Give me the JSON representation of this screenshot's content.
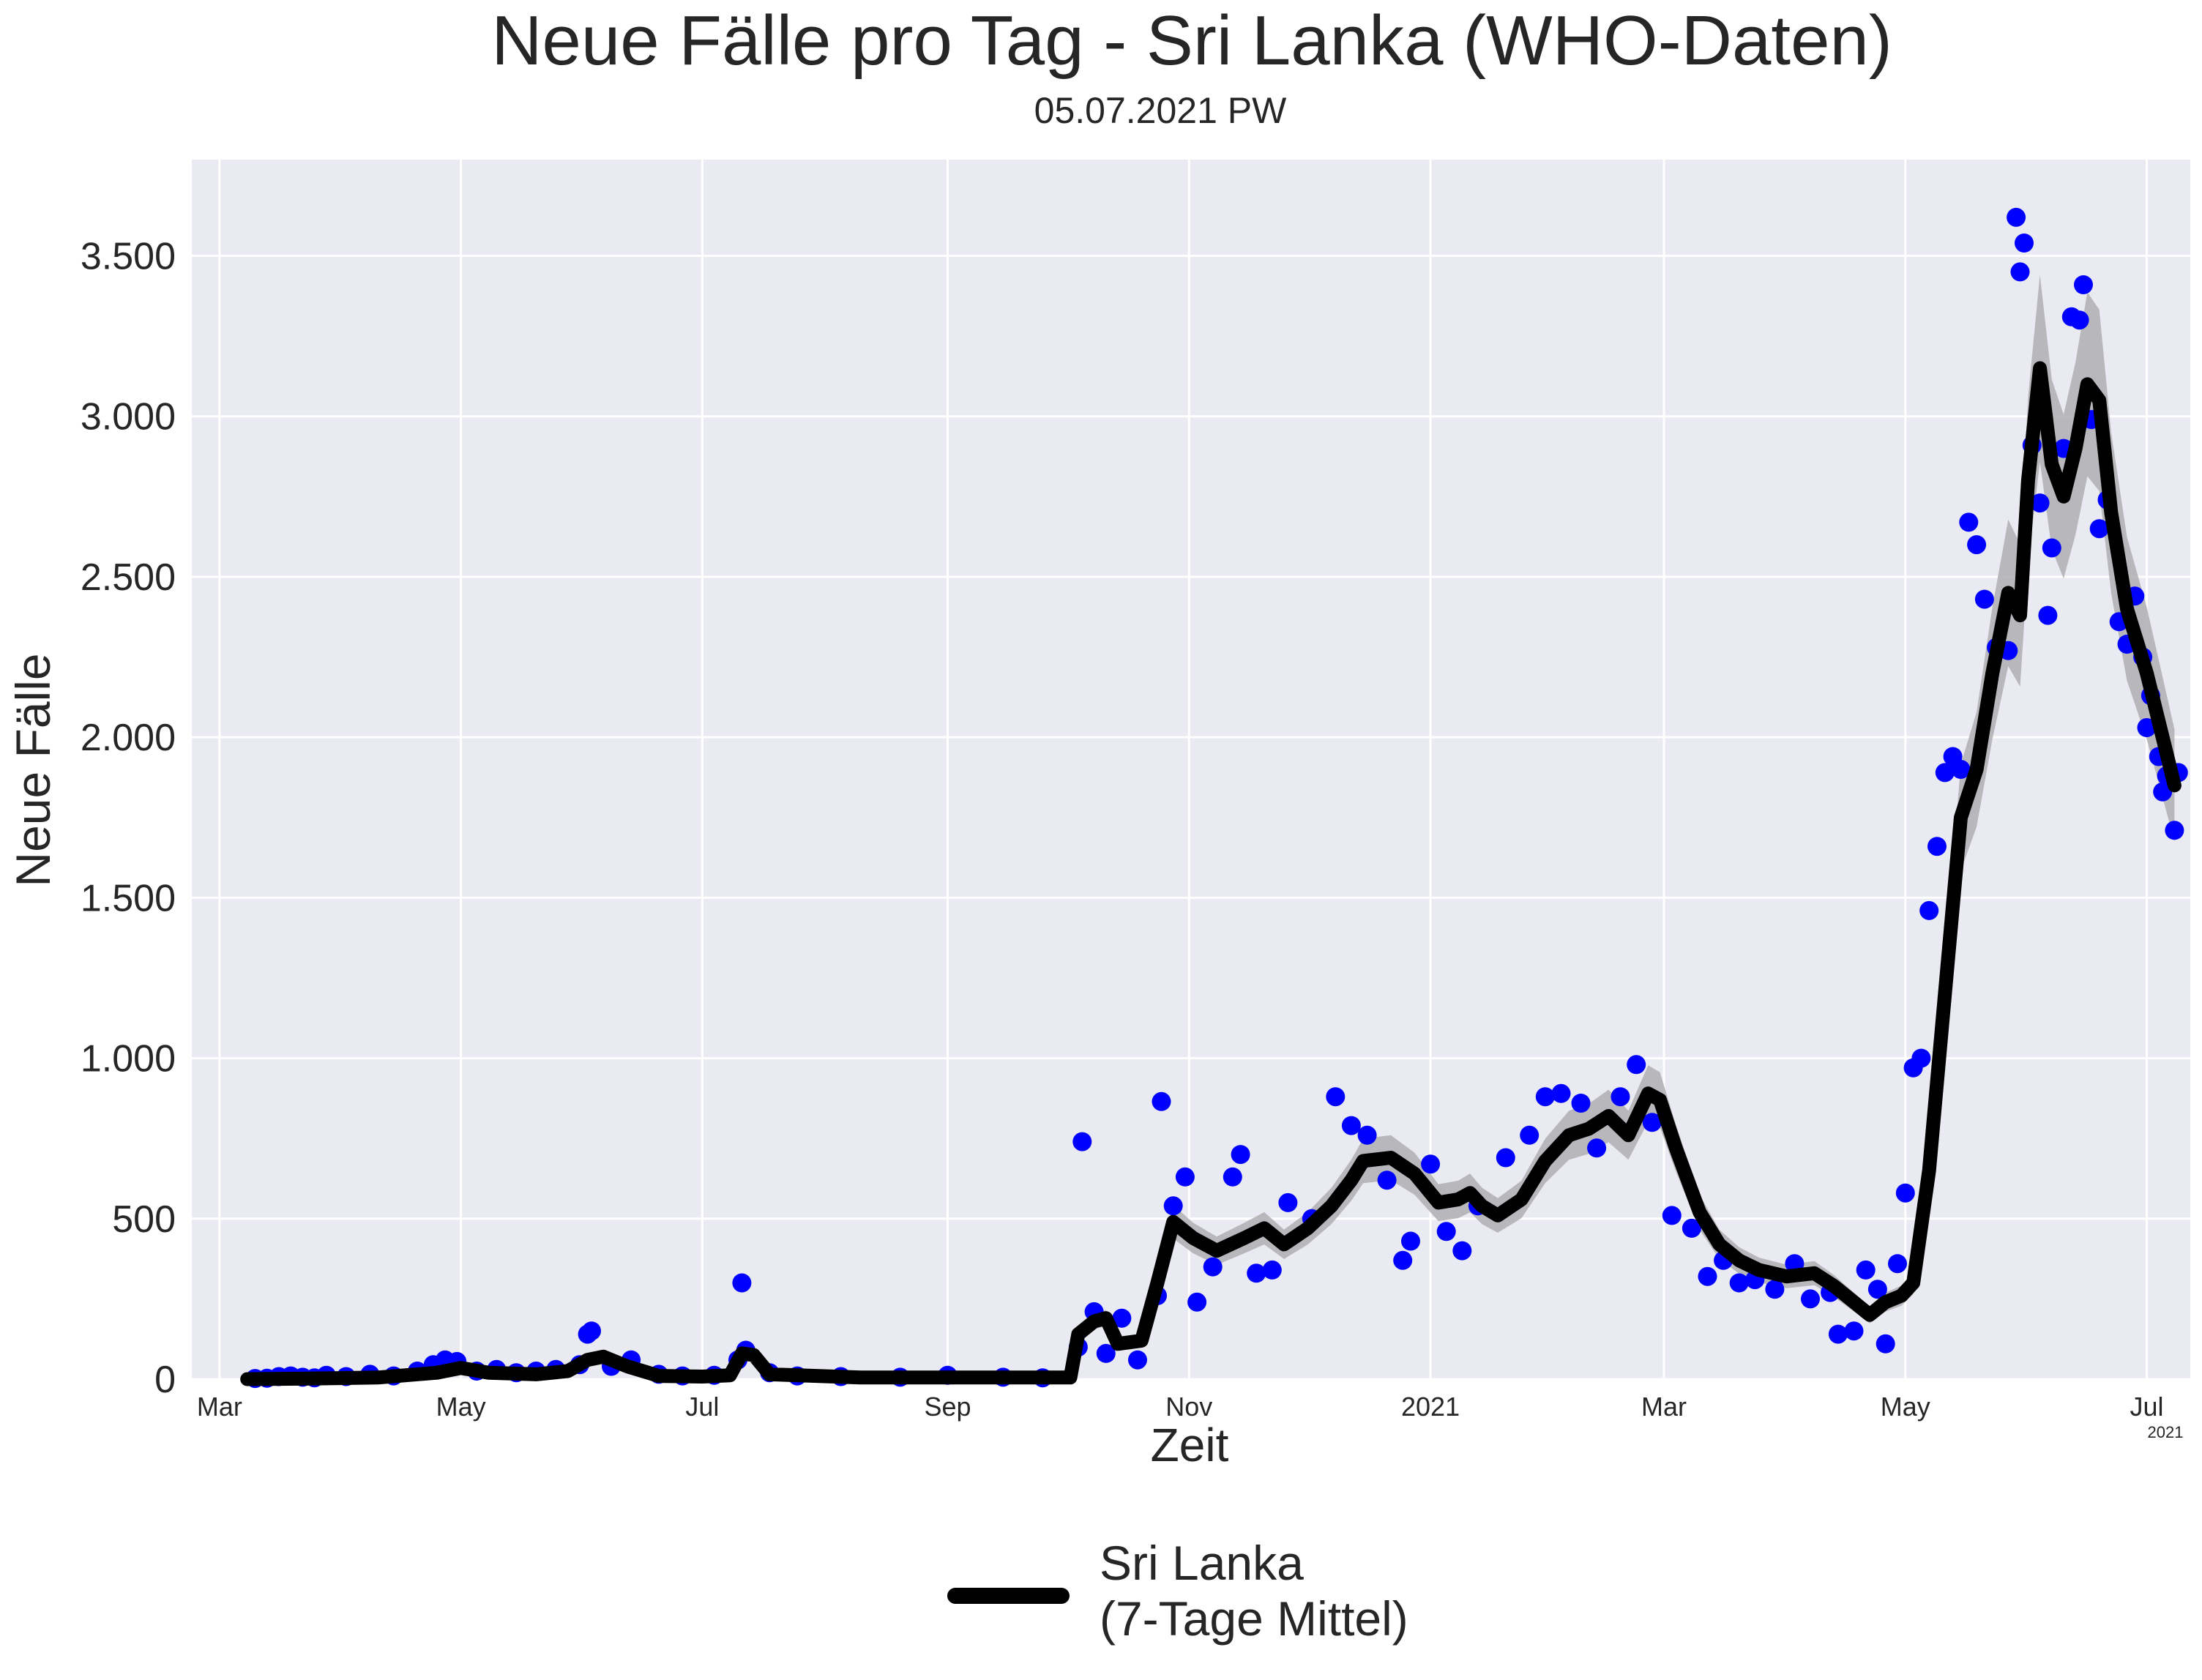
{
  "colors": {
    "background": "#ffffff",
    "plot_background": "#eaeaf2",
    "grid": "#ffffff",
    "points": "#0000ff",
    "line": "#000000",
    "band": "#b3b3b6",
    "text": "#262626"
  },
  "chart_data": {
    "type": "line",
    "title": "Neue Fälle pro Tag - Sri Lanka (WHO-Daten)",
    "subtitle": "05.07.2021 PW",
    "xlabel": "Zeit",
    "ylabel": "Neue Fälle",
    "xlim": [
      "2020-02-23",
      "2021-07-12"
    ],
    "ylim": [
      0,
      3800
    ],
    "y_ticks": [
      0,
      500,
      1000,
      1500,
      2000,
      2500,
      3000,
      3500
    ],
    "y_tick_labels": [
      "0",
      "500",
      "1.000",
      "1.500",
      "2.000",
      "2.500",
      "3.000",
      "3.500"
    ],
    "x_ticks": [
      {
        "date": "2020-03-01",
        "label": "Mar"
      },
      {
        "date": "2020-05-01",
        "label": "May"
      },
      {
        "date": "2020-07-01",
        "label": "Jul"
      },
      {
        "date": "2020-09-01",
        "label": "Sep"
      },
      {
        "date": "2020-11-01",
        "label": "Nov"
      },
      {
        "date": "2021-01-01",
        "label": "2021"
      },
      {
        "date": "2021-03-01",
        "label": "Mar"
      },
      {
        "date": "2021-05-01",
        "label": "May"
      },
      {
        "date": "2021-07-01",
        "label": "Jul"
      }
    ],
    "x_offset_label": "2021",
    "grid": true,
    "legend_position": "bottom-center",
    "series": [
      {
        "name": "Sri Lanka\n(7-Tage Mittel)",
        "kind": "line",
        "points": [
          [
            "2020-03-08",
            0
          ],
          [
            "2020-03-25",
            2
          ],
          [
            "2020-04-10",
            5
          ],
          [
            "2020-04-25",
            20
          ],
          [
            "2020-05-01",
            35
          ],
          [
            "2020-05-08",
            20
          ],
          [
            "2020-05-20",
            15
          ],
          [
            "2020-05-28",
            25
          ],
          [
            "2020-06-02",
            60
          ],
          [
            "2020-06-06",
            70
          ],
          [
            "2020-06-12",
            40
          ],
          [
            "2020-06-20",
            10
          ],
          [
            "2020-07-01",
            8
          ],
          [
            "2020-07-08",
            12
          ],
          [
            "2020-07-11",
            80
          ],
          [
            "2020-07-14",
            75
          ],
          [
            "2020-07-18",
            15
          ],
          [
            "2020-08-10",
            5
          ],
          [
            "2020-09-15",
            5
          ],
          [
            "2020-10-02",
            5
          ],
          [
            "2020-10-04",
            140
          ],
          [
            "2020-10-08",
            180
          ],
          [
            "2020-10-11",
            190
          ],
          [
            "2020-10-14",
            110
          ],
          [
            "2020-10-20",
            120
          ],
          [
            "2020-10-24",
            300
          ],
          [
            "2020-10-28",
            490
          ],
          [
            "2020-11-02",
            440
          ],
          [
            "2020-11-08",
            400
          ],
          [
            "2020-11-15",
            440
          ],
          [
            "2020-11-20",
            470
          ],
          [
            "2020-11-25",
            420
          ],
          [
            "2020-12-01",
            470
          ],
          [
            "2020-12-07",
            540
          ],
          [
            "2020-12-12",
            620
          ],
          [
            "2020-12-15",
            680
          ],
          [
            "2020-12-22",
            690
          ],
          [
            "2020-12-28",
            640
          ],
          [
            "2021-01-03",
            550
          ],
          [
            "2021-01-08",
            560
          ],
          [
            "2021-01-11",
            580
          ],
          [
            "2021-01-14",
            540
          ],
          [
            "2021-01-18",
            510
          ],
          [
            "2021-01-24",
            560
          ],
          [
            "2021-01-30",
            680
          ],
          [
            "2021-02-05",
            760
          ],
          [
            "2021-02-10",
            780
          ],
          [
            "2021-02-15",
            820
          ],
          [
            "2021-02-20",
            760
          ],
          [
            "2021-02-25",
            890
          ],
          [
            "2021-02-28",
            870
          ],
          [
            "2021-03-04",
            720
          ],
          [
            "2021-03-10",
            520
          ],
          [
            "2021-03-15",
            420
          ],
          [
            "2021-03-20",
            370
          ],
          [
            "2021-03-25",
            340
          ],
          [
            "2021-04-01",
            320
          ],
          [
            "2021-04-08",
            330
          ],
          [
            "2021-04-13",
            290
          ],
          [
            "2021-04-18",
            240
          ],
          [
            "2021-04-22",
            200
          ],
          [
            "2021-04-26",
            240
          ],
          [
            "2021-04-30",
            260
          ],
          [
            "2021-05-03",
            300
          ],
          [
            "2021-05-07",
            650
          ],
          [
            "2021-05-11",
            1200
          ],
          [
            "2021-05-15",
            1750
          ],
          [
            "2021-05-19",
            1900
          ],
          [
            "2021-05-23",
            2200
          ],
          [
            "2021-05-27",
            2450
          ],
          [
            "2021-05-30",
            2380
          ],
          [
            "2021-06-01",
            2800
          ],
          [
            "2021-06-04",
            3150
          ],
          [
            "2021-06-07",
            2850
          ],
          [
            "2021-06-10",
            2750
          ],
          [
            "2021-06-13",
            2900
          ],
          [
            "2021-06-16",
            3100
          ],
          [
            "2021-06-19",
            3050
          ],
          [
            "2021-06-22",
            2700
          ],
          [
            "2021-06-26",
            2400
          ],
          [
            "2021-07-01",
            2200
          ],
          [
            "2021-07-05",
            2000
          ],
          [
            "2021-07-08",
            1850
          ]
        ]
      },
      {
        "kind": "scatter",
        "points": [
          [
            "2020-03-10",
            2
          ],
          [
            "2020-03-13",
            3
          ],
          [
            "2020-03-16",
            8
          ],
          [
            "2020-03-19",
            10
          ],
          [
            "2020-03-22",
            6
          ],
          [
            "2020-03-25",
            4
          ],
          [
            "2020-03-28",
            12
          ],
          [
            "2020-04-02",
            8
          ],
          [
            "2020-04-08",
            15
          ],
          [
            "2020-04-14",
            10
          ],
          [
            "2020-04-20",
            25
          ],
          [
            "2020-04-24",
            45
          ],
          [
            "2020-04-27",
            60
          ],
          [
            "2020-04-30",
            55
          ],
          [
            "2020-05-05",
            25
          ],
          [
            "2020-05-10",
            30
          ],
          [
            "2020-05-15",
            20
          ],
          [
            "2020-05-20",
            25
          ],
          [
            "2020-05-25",
            30
          ],
          [
            "2020-05-31",
            45
          ],
          [
            "2020-06-02",
            140
          ],
          [
            "2020-06-03",
            150
          ],
          [
            "2020-06-08",
            40
          ],
          [
            "2020-06-13",
            60
          ],
          [
            "2020-06-20",
            15
          ],
          [
            "2020-06-26",
            10
          ],
          [
            "2020-07-04",
            12
          ],
          [
            "2020-07-10",
            60
          ],
          [
            "2020-07-11",
            300
          ],
          [
            "2020-07-12",
            90
          ],
          [
            "2020-07-18",
            20
          ],
          [
            "2020-07-25",
            10
          ],
          [
            "2020-08-05",
            8
          ],
          [
            "2020-08-20",
            6
          ],
          [
            "2020-09-01",
            12
          ],
          [
            "2020-09-15",
            6
          ],
          [
            "2020-09-25",
            4
          ],
          [
            "2020-10-04",
            100
          ],
          [
            "2020-10-05",
            740
          ],
          [
            "2020-10-08",
            210
          ],
          [
            "2020-10-11",
            80
          ],
          [
            "2020-10-15",
            190
          ],
          [
            "2020-10-19",
            60
          ],
          [
            "2020-10-24",
            260
          ],
          [
            "2020-10-25",
            865
          ],
          [
            "2020-10-28",
            540
          ],
          [
            "2020-10-31",
            630
          ],
          [
            "2020-11-03",
            240
          ],
          [
            "2020-11-07",
            350
          ],
          [
            "2020-11-12",
            630
          ],
          [
            "2020-11-14",
            700
          ],
          [
            "2020-11-18",
            330
          ],
          [
            "2020-11-22",
            340
          ],
          [
            "2020-11-26",
            550
          ],
          [
            "2020-12-02",
            500
          ],
          [
            "2020-12-08",
            880
          ],
          [
            "2020-12-12",
            790
          ],
          [
            "2020-12-16",
            760
          ],
          [
            "2020-12-21",
            620
          ],
          [
            "2020-12-25",
            370
          ],
          [
            "2020-12-27",
            430
          ],
          [
            "2021-01-01",
            670
          ],
          [
            "2021-01-05",
            460
          ],
          [
            "2021-01-09",
            400
          ],
          [
            "2021-01-13",
            540
          ],
          [
            "2021-01-20",
            690
          ],
          [
            "2021-01-26",
            760
          ],
          [
            "2021-01-30",
            880
          ],
          [
            "2021-02-03",
            890
          ],
          [
            "2021-02-08",
            860
          ],
          [
            "2021-02-12",
            720
          ],
          [
            "2021-02-18",
            880
          ],
          [
            "2021-02-22",
            980
          ],
          [
            "2021-02-26",
            800
          ],
          [
            "2021-03-03",
            510
          ],
          [
            "2021-03-08",
            470
          ],
          [
            "2021-03-12",
            320
          ],
          [
            "2021-03-16",
            370
          ],
          [
            "2021-03-20",
            300
          ],
          [
            "2021-03-24",
            310
          ],
          [
            "2021-03-29",
            280
          ],
          [
            "2021-04-03",
            360
          ],
          [
            "2021-04-07",
            250
          ],
          [
            "2021-04-12",
            270
          ],
          [
            "2021-04-14",
            140
          ],
          [
            "2021-04-18",
            150
          ],
          [
            "2021-04-21",
            340
          ],
          [
            "2021-04-24",
            280
          ],
          [
            "2021-04-26",
            110
          ],
          [
            "2021-04-29",
            360
          ],
          [
            "2021-05-01",
            580
          ],
          [
            "2021-05-03",
            970
          ],
          [
            "2021-05-05",
            1000
          ],
          [
            "2021-05-07",
            1460
          ],
          [
            "2021-05-09",
            1660
          ],
          [
            "2021-05-11",
            1890
          ],
          [
            "2021-05-13",
            1940
          ],
          [
            "2021-05-15",
            1900
          ],
          [
            "2021-05-17",
            2670
          ],
          [
            "2021-05-19",
            2600
          ],
          [
            "2021-05-21",
            2430
          ],
          [
            "2021-05-24",
            2280
          ],
          [
            "2021-05-27",
            2270
          ],
          [
            "2021-05-29",
            3620
          ],
          [
            "2021-05-30",
            3450
          ],
          [
            "2021-05-31",
            3540
          ],
          [
            "2021-06-02",
            2910
          ],
          [
            "2021-06-04",
            2730
          ],
          [
            "2021-06-06",
            2380
          ],
          [
            "2021-06-07",
            2590
          ],
          [
            "2021-06-10",
            2900
          ],
          [
            "2021-06-12",
            3310
          ],
          [
            "2021-06-14",
            3300
          ],
          [
            "2021-06-15",
            3410
          ],
          [
            "2021-06-17",
            2990
          ],
          [
            "2021-06-19",
            2650
          ],
          [
            "2021-06-21",
            2740
          ],
          [
            "2021-06-24",
            2360
          ],
          [
            "2021-06-26",
            2290
          ],
          [
            "2021-06-28",
            2440
          ],
          [
            "2021-06-30",
            2250
          ],
          [
            "2021-07-01",
            2030
          ],
          [
            "2021-07-02",
            2130
          ],
          [
            "2021-07-04",
            1940
          ],
          [
            "2021-07-05",
            1830
          ],
          [
            "2021-07-06",
            1880
          ],
          [
            "2021-07-08",
            1710
          ],
          [
            "2021-07-09",
            1890
          ]
        ]
      }
    ],
    "annotations": []
  }
}
